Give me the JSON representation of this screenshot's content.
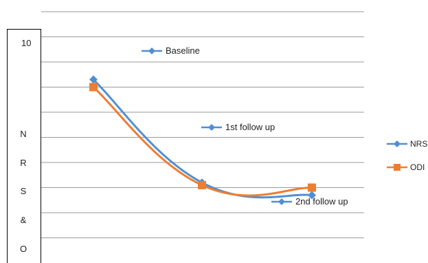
{
  "chart_data": {
    "type": "line",
    "categories": [
      "Baseline",
      "1st follow up",
      "2nd follow up"
    ],
    "series": [
      {
        "name": "NRS",
        "values": [
          9.3,
          5.2,
          4.7
        ],
        "color": "#4f8fd4",
        "marker": "diamond"
      },
      {
        "name": "ODI",
        "values": [
          9.0,
          5.1,
          5.0
        ],
        "color": "#ed7d31",
        "marker": "square"
      }
    ],
    "ylabel": "N R S & O",
    "ytick_top": "10",
    "ylim": [
      0,
      12
    ],
    "annotations": [
      "Baseline",
      "1st follow up",
      "2nd follow up"
    ],
    "legend": [
      "NRS",
      "ODI"
    ],
    "legend_position": "right",
    "grid": true
  }
}
